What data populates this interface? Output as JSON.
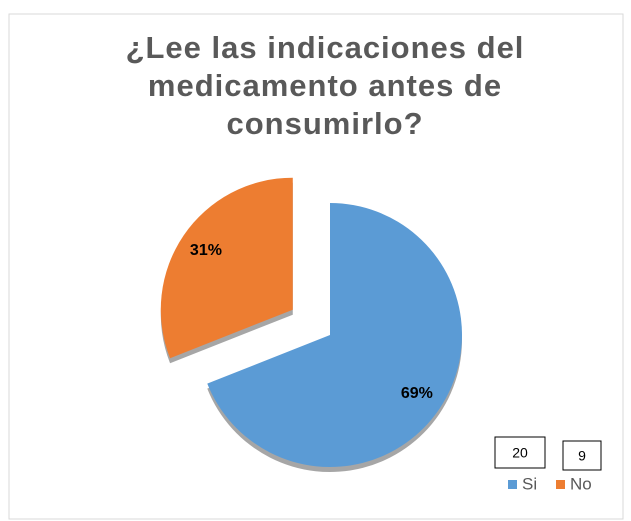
{
  "chart_data": {
    "type": "pie",
    "title": [
      "¿Lee las indicaciones del",
      "medicamento antes de",
      "consumirlo?"
    ],
    "categories": [
      "Si",
      "No"
    ],
    "values": [
      69,
      31
    ],
    "value_labels": [
      "69%",
      "31%"
    ],
    "colors": [
      "#5b9bd5",
      "#ed7d31"
    ],
    "counts": [
      20,
      9
    ],
    "legend": "bottom-right"
  }
}
